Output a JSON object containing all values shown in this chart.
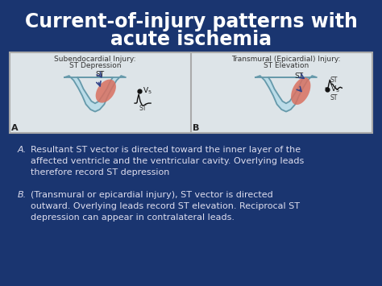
{
  "background_color": "#1a3570",
  "title_line1": "Current-of-injury patterns with",
  "title_line2": "acute ischemia",
  "title_color": "#ffffff",
  "title_fontsize": 17,
  "left_panel_title1": "Subendocardial Injury:",
  "left_panel_title2": "ST Depression",
  "right_panel_title1": "Transmural (Epicardial) Injury:",
  "right_panel_title2": "ST Elevation",
  "panel_title_color": "#333333",
  "panel_title_fontsize": 6.5,
  "bullet_A_text": "Resultant ST vector is directed toward the inner layer of the\naffected ventricle and the ventricular cavity. Overlying leads\ntherefore record ST depression",
  "bullet_B_text": "(Transmural or epicardial injury), ST vector is directed\noutward. Overlying leads record ST elevation. Reciprocal ST\ndepression can appear in contralateral leads.",
  "bullet_color": "#ddddee",
  "bullet_fontsize": 8.0,
  "heart_fill": "#b8dce8",
  "heart_edge": "#6699aa",
  "ischemia_fill": "#d97060",
  "arrow_color": "#334488"
}
